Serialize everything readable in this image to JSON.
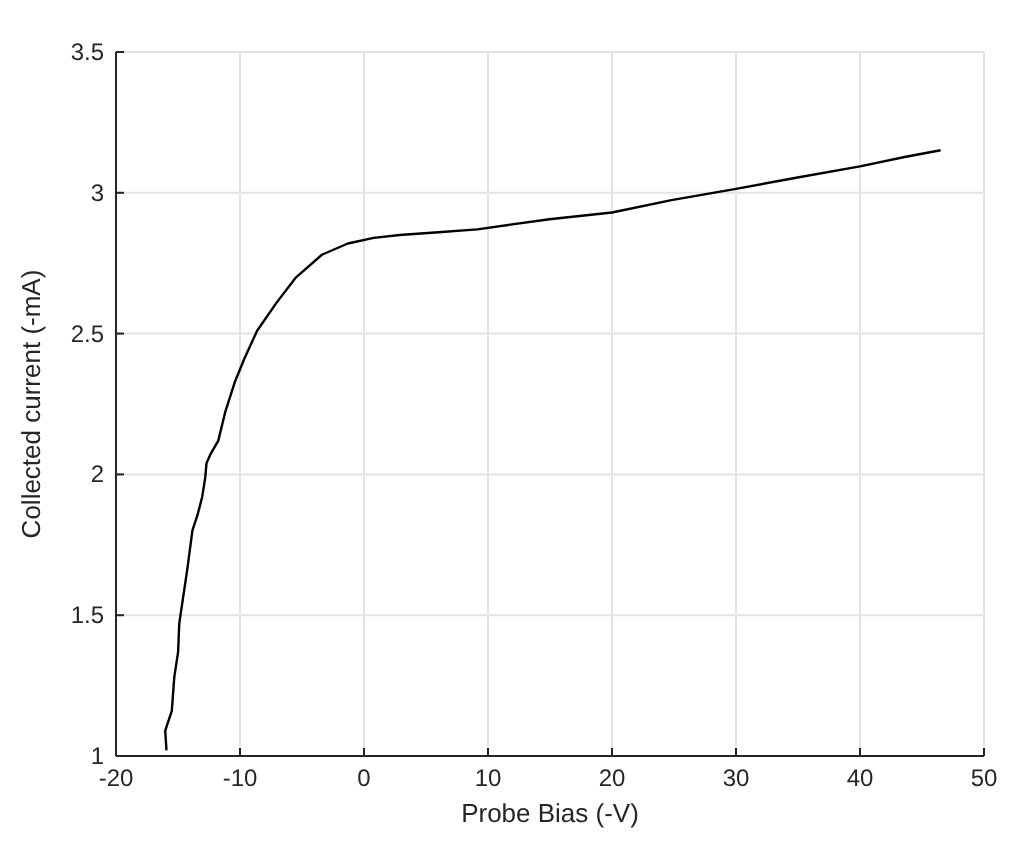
{
  "chart_data": {
    "type": "line",
    "xlabel": "Probe Bias (-V)",
    "ylabel": "Collected current (-mA)",
    "xlim": [
      -20,
      50
    ],
    "ylim": [
      1,
      3.5
    ],
    "xticks": [
      -20,
      -10,
      0,
      10,
      20,
      30,
      40,
      50
    ],
    "yticks": [
      1,
      1.5,
      2,
      2.5,
      3,
      3.5
    ],
    "grid": true,
    "marker": "none",
    "line_style": "solid",
    "series": [
      {
        "color": "#000000",
        "x": [
          -15.93,
          -16.03,
          -15.5,
          -15.3,
          -14.99,
          -14.9,
          -14.6,
          -14.26,
          -13.84,
          -13.4,
          -13.05,
          -12.8,
          -12.7,
          -12.4,
          -11.75,
          -11.2,
          -10.4,
          -9.66,
          -8.62,
          -7.05,
          -5.48,
          -3.4,
          -1.3,
          0.78,
          2.87,
          6.0,
          9.14,
          11.8,
          14.95,
          20,
          24.8,
          30,
          35.3,
          40,
          43.6,
          46.5
        ],
        "values": [
          1.02,
          1.09,
          1.16,
          1.28,
          1.37,
          1.47,
          1.56,
          1.66,
          1.8,
          1.86,
          1.92,
          1.99,
          2.04,
          2.07,
          2.12,
          2.22,
          2.33,
          2.41,
          2.51,
          2.61,
          2.7,
          2.78,
          2.82,
          2.84,
          2.85,
          2.86,
          2.87,
          2.887,
          2.906,
          2.93,
          2.974,
          3.014,
          3.057,
          3.094,
          3.127,
          3.151
        ]
      }
    ]
  }
}
